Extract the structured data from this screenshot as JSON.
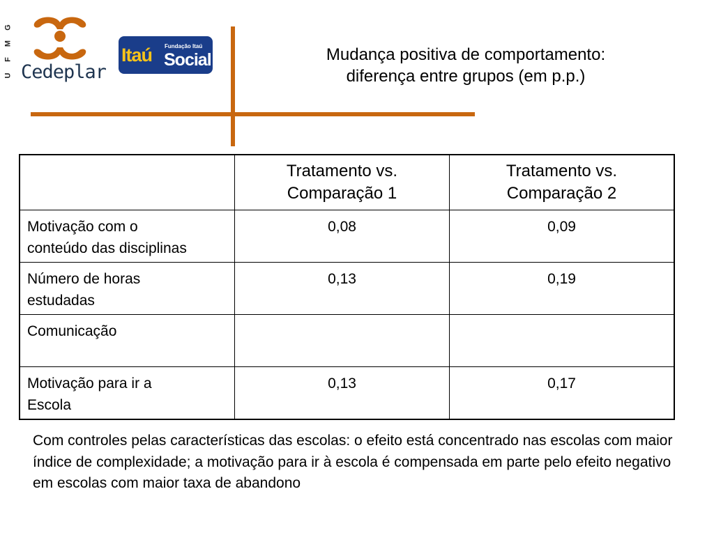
{
  "logos": {
    "ufmg_letters": [
      "G",
      "M",
      "F",
      "U"
    ],
    "cedeplar_name": "Cedeplar",
    "itau_word": "Itaú",
    "itau_subtitle": "Fundação Itaú",
    "itau_social": "Social",
    "accent_color": "#c8670f",
    "itau_blue": "#1a3d8a",
    "itau_yellow": "#f7c31a"
  },
  "title": {
    "line1": "Mudança positiva de comportamento:",
    "line2": "diferença entre grupos (em p.p.)"
  },
  "table": {
    "headers": [
      "",
      "Tratamento vs. Comparação 1",
      "Tratamento vs. Comparação 2"
    ],
    "header_lines": [
      [
        "",
        ""
      ],
      [
        "Tratamento vs.",
        "Comparação 1"
      ],
      [
        "Tratamento vs.",
        "Comparação 2"
      ]
    ],
    "rows": [
      {
        "label_lines": [
          "Motivação com o",
          "conteúdo das disciplinas"
        ],
        "values": [
          "0,08",
          "0,09"
        ]
      },
      {
        "label_lines": [
          "Número de horas",
          "estudadas"
        ],
        "values": [
          "0,13",
          "0,19"
        ]
      },
      {
        "label_lines": [
          "Comunicação",
          ""
        ],
        "values": [
          "",
          ""
        ]
      },
      {
        "label_lines": [
          "Motivação para ir a",
          "Escola"
        ],
        "values": [
          "0,13",
          "0,17"
        ]
      }
    ]
  },
  "note": "Com controles pelas características das escolas: o efeito está concentrado nas escolas com maior índice de complexidade; a motivação para ir à escola é compensada em parte pelo efeito negativo em escolas com maior taxa de abandono"
}
